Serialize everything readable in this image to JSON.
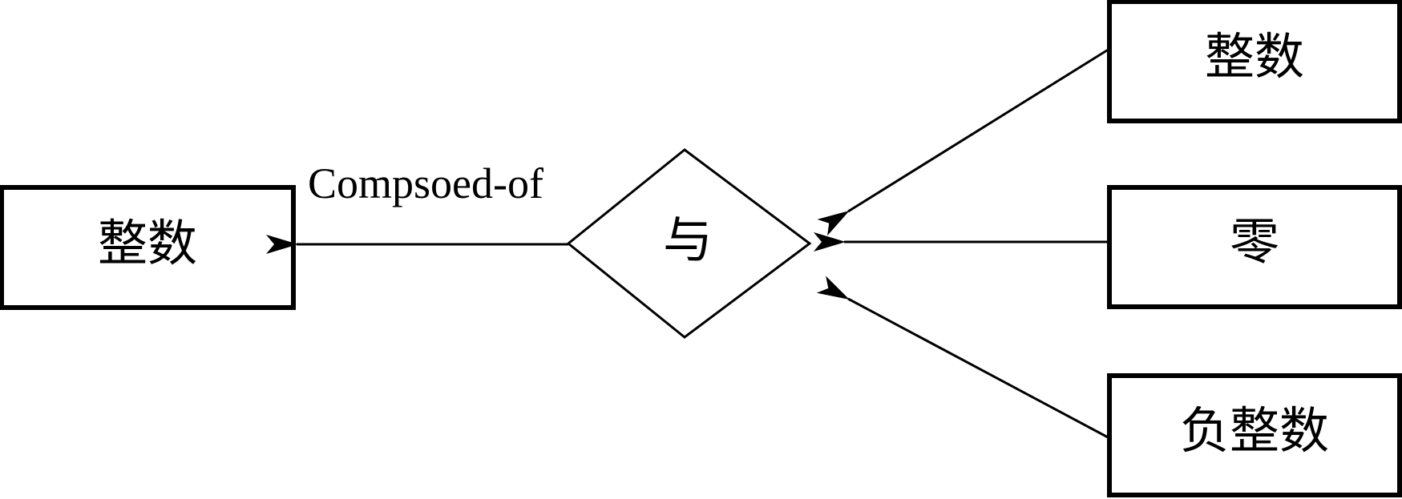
{
  "diagram": {
    "target_entity": {
      "label": "整数"
    },
    "relation": {
      "label": "与",
      "edge_label": "Compsoed-of"
    },
    "source_entities": [
      {
        "label": "整数"
      },
      {
        "label": "零"
      },
      {
        "label": "负整数"
      }
    ]
  },
  "colors": {
    "stroke": "#000000",
    "text": "#000000",
    "background": "#ffffff"
  }
}
